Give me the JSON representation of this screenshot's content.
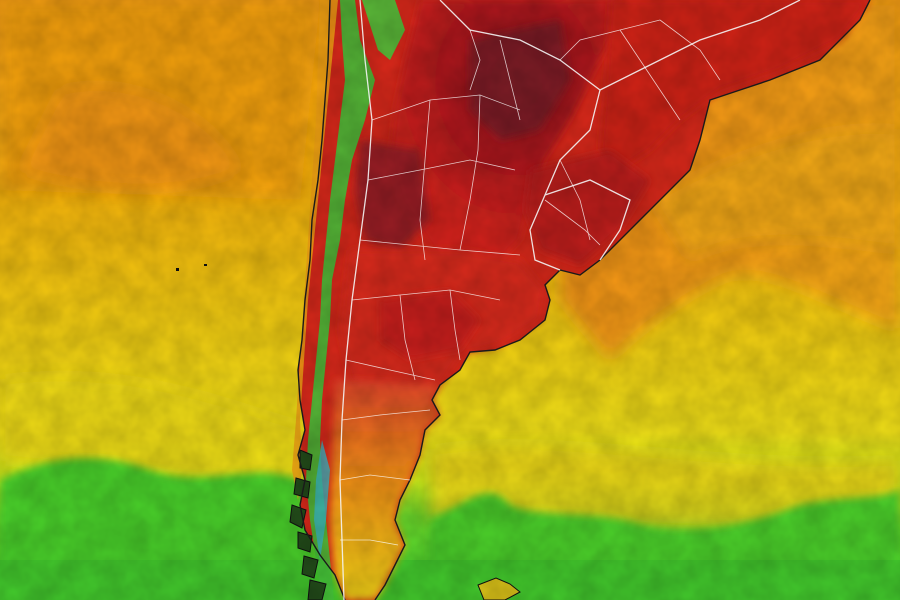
{
  "map": {
    "type": "temperature-heatmap",
    "region": "southern-south-america",
    "projection": "lat-lon",
    "labels_visible": false
  },
  "colors": {
    "ocean_orange": "#f29a12",
    "ocean_amber": "#f6b40c",
    "ocean_yellow": "#f4dd14",
    "ocean_lime": "#b9ec1f",
    "ocean_green": "#46d62a",
    "land_red": "#e02a12",
    "land_darkred": "#b3151a",
    "land_maroon": "#8a1e26",
    "andes_green": "#46c23a",
    "andes_cyan": "#36b8c8",
    "border_line": "#ffffff",
    "coast_line": "#222222"
  },
  "legend": {
    "visible": false
  }
}
